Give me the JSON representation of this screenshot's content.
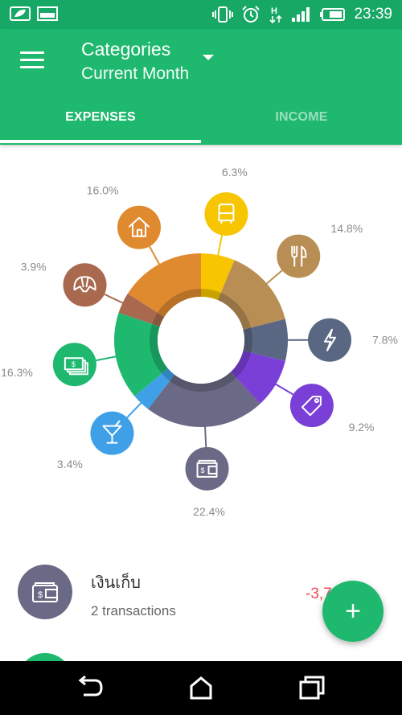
{
  "status_bar": {
    "time": "23:39",
    "icons": [
      "leaf-icon",
      "image-icon",
      "vibrate-icon",
      "alarm-icon",
      "data-h-icon",
      "signal-icon",
      "battery-icon"
    ]
  },
  "app_bar": {
    "title": "Categories",
    "subtitle": "Current Month",
    "tabs": [
      {
        "label": "EXPENSES",
        "active": true
      },
      {
        "label": "INCOME",
        "active": false
      }
    ]
  },
  "colors": {
    "primary": "#1fb86f",
    "status_bar": "#17a866",
    "negative_amount": "#ef4d55"
  },
  "chart_data": {
    "type": "pie",
    "style": "donut",
    "slices": [
      {
        "percent": 6.3,
        "label": "6.3%",
        "color": "#f7c600",
        "icon": "bus-icon"
      },
      {
        "percent": 14.8,
        "label": "14.8%",
        "color": "#b98e55",
        "icon": "fork-knife-icon"
      },
      {
        "percent": 7.8,
        "label": "7.8%",
        "color": "#5a6783",
        "icon": "lightning-icon"
      },
      {
        "percent": 9.2,
        "label": "9.2%",
        "color": "#7a3fd6",
        "icon": "price-tag-icon"
      },
      {
        "percent": 22.4,
        "label": "22.4%",
        "color": "#6a6a86",
        "icon": "wallet-icon"
      },
      {
        "percent": 3.4,
        "label": "3.4%",
        "color": "#3fa0e8",
        "icon": "cocktail-icon"
      },
      {
        "percent": 16.3,
        "label": "16.3%",
        "color": "#1fb86f",
        "icon": "cash-icon"
      },
      {
        "percent": 3.9,
        "label": "3.9%",
        "color": "#a8694e",
        "icon": "croissant-icon"
      },
      {
        "percent": 16.0,
        "label": "16.0%",
        "color": "#e08a30",
        "icon": "house-icon"
      }
    ]
  },
  "list": [
    {
      "title": "เงินเก็บ",
      "subtitle": "2 transactions",
      "amount": "-3,7",
      "icon": "wallet-icon",
      "color": "#6a6a86"
    }
  ],
  "fab": {
    "icon": "plus-icon",
    "label": "+"
  },
  "nav": [
    "back-icon",
    "home-icon",
    "recents-icon"
  ]
}
